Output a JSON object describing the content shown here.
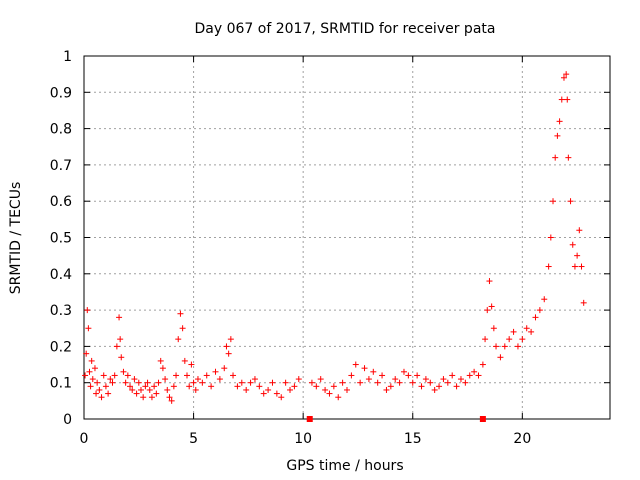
{
  "chart_data": {
    "type": "scatter",
    "title": "Day 067 of 2017, SRMTID for receiver pata",
    "xlabel": "GPS time / hours",
    "ylabel": "SRMTID / TECUs",
    "xlim": [
      0,
      24
    ],
    "ylim": [
      0,
      1
    ],
    "xticks": [
      0,
      5,
      10,
      15,
      20
    ],
    "xtick_labels": [
      "0",
      "5",
      "10",
      "15",
      "20"
    ],
    "yticks": [
      0,
      0.1,
      0.2,
      0.3,
      0.4,
      0.5,
      0.6,
      0.7,
      0.8,
      0.9,
      1
    ],
    "ytick_labels": [
      "0",
      "0.1",
      "0.2",
      "0.3",
      "0.4",
      "0.5",
      "0.6",
      "0.7",
      "0.8",
      "0.9",
      "1"
    ],
    "grid": true,
    "marker": "+",
    "series_color": "#ff0000",
    "series": [
      {
        "name": "SRMTID",
        "points": [
          [
            0.05,
            0.12
          ],
          [
            0.1,
            0.18
          ],
          [
            0.15,
            0.3
          ],
          [
            0.2,
            0.25
          ],
          [
            0.25,
            0.13
          ],
          [
            0.3,
            0.09
          ],
          [
            0.35,
            0.16
          ],
          [
            0.4,
            0.11
          ],
          [
            0.5,
            0.14
          ],
          [
            0.55,
            0.07
          ],
          [
            0.6,
            0.1
          ],
          [
            0.7,
            0.08
          ],
          [
            0.8,
            0.06
          ],
          [
            0.9,
            0.12
          ],
          [
            1.0,
            0.09
          ],
          [
            1.1,
            0.07
          ],
          [
            1.2,
            0.11
          ],
          [
            1.3,
            0.1
          ],
          [
            1.4,
            0.12
          ],
          [
            1.5,
            0.2
          ],
          [
            1.6,
            0.28
          ],
          [
            1.65,
            0.22
          ],
          [
            1.7,
            0.17
          ],
          [
            1.8,
            0.13
          ],
          [
            1.9,
            0.1
          ],
          [
            2.0,
            0.12
          ],
          [
            2.1,
            0.09
          ],
          [
            2.2,
            0.08
          ],
          [
            2.3,
            0.11
          ],
          [
            2.4,
            0.07
          ],
          [
            2.5,
            0.1
          ],
          [
            2.6,
            0.08
          ],
          [
            2.7,
            0.06
          ],
          [
            2.8,
            0.09
          ],
          [
            2.9,
            0.1
          ],
          [
            3.0,
            0.08
          ],
          [
            3.1,
            0.06
          ],
          [
            3.2,
            0.09
          ],
          [
            3.3,
            0.07
          ],
          [
            3.4,
            0.1
          ],
          [
            3.5,
            0.16
          ],
          [
            3.6,
            0.14
          ],
          [
            3.7,
            0.11
          ],
          [
            3.8,
            0.08
          ],
          [
            3.9,
            0.06
          ],
          [
            4.0,
            0.05
          ],
          [
            4.1,
            0.09
          ],
          [
            4.2,
            0.12
          ],
          [
            4.3,
            0.22
          ],
          [
            4.4,
            0.29
          ],
          [
            4.5,
            0.25
          ],
          [
            4.6,
            0.16
          ],
          [
            4.7,
            0.12
          ],
          [
            4.8,
            0.09
          ],
          [
            4.9,
            0.15
          ],
          [
            5.0,
            0.1
          ],
          [
            5.1,
            0.08
          ],
          [
            5.2,
            0.11
          ],
          [
            5.4,
            0.1
          ],
          [
            5.6,
            0.12
          ],
          [
            5.8,
            0.09
          ],
          [
            6.0,
            0.13
          ],
          [
            6.2,
            0.11
          ],
          [
            6.4,
            0.14
          ],
          [
            6.5,
            0.2
          ],
          [
            6.6,
            0.18
          ],
          [
            6.7,
            0.22
          ],
          [
            6.8,
            0.12
          ],
          [
            7.0,
            0.09
          ],
          [
            7.2,
            0.1
          ],
          [
            7.4,
            0.08
          ],
          [
            7.6,
            0.1
          ],
          [
            7.8,
            0.11
          ],
          [
            8.0,
            0.09
          ],
          [
            8.2,
            0.07
          ],
          [
            8.4,
            0.08
          ],
          [
            8.6,
            0.1
          ],
          [
            8.8,
            0.07
          ],
          [
            9.0,
            0.06
          ],
          [
            9.2,
            0.1
          ],
          [
            9.4,
            0.08
          ],
          [
            9.6,
            0.09
          ],
          [
            9.8,
            0.11
          ],
          [
            10.4,
            0.1
          ],
          [
            10.6,
            0.09
          ],
          [
            10.8,
            0.11
          ],
          [
            11.0,
            0.08
          ],
          [
            11.2,
            0.07
          ],
          [
            11.4,
            0.09
          ],
          [
            11.6,
            0.06
          ],
          [
            11.8,
            0.1
          ],
          [
            12.0,
            0.08
          ],
          [
            12.2,
            0.12
          ],
          [
            12.4,
            0.15
          ],
          [
            12.6,
            0.1
          ],
          [
            12.8,
            0.14
          ],
          [
            13.0,
            0.11
          ],
          [
            13.2,
            0.13
          ],
          [
            13.4,
            0.1
          ],
          [
            13.6,
            0.12
          ],
          [
            13.8,
            0.08
          ],
          [
            14.0,
            0.09
          ],
          [
            14.2,
            0.11
          ],
          [
            14.4,
            0.1
          ],
          [
            14.6,
            0.13
          ],
          [
            14.8,
            0.12
          ],
          [
            15.0,
            0.1
          ],
          [
            15.2,
            0.12
          ],
          [
            15.4,
            0.09
          ],
          [
            15.6,
            0.11
          ],
          [
            15.8,
            0.1
          ],
          [
            16.0,
            0.08
          ],
          [
            16.2,
            0.09
          ],
          [
            16.4,
            0.11
          ],
          [
            16.6,
            0.1
          ],
          [
            16.8,
            0.12
          ],
          [
            17.0,
            0.09
          ],
          [
            17.2,
            0.11
          ],
          [
            17.4,
            0.1
          ],
          [
            17.6,
            0.12
          ],
          [
            17.8,
            0.13
          ],
          [
            18.0,
            0.12
          ],
          [
            18.2,
            0.15
          ],
          [
            18.3,
            0.22
          ],
          [
            18.4,
            0.3
          ],
          [
            18.5,
            0.38
          ],
          [
            18.6,
            0.31
          ],
          [
            18.7,
            0.25
          ],
          [
            18.8,
            0.2
          ],
          [
            19.0,
            0.17
          ],
          [
            19.2,
            0.2
          ],
          [
            19.4,
            0.22
          ],
          [
            19.6,
            0.24
          ],
          [
            19.8,
            0.2
          ],
          [
            20.0,
            0.22
          ],
          [
            20.2,
            0.25
          ],
          [
            20.4,
            0.24
          ],
          [
            20.6,
            0.28
          ],
          [
            20.8,
            0.3
          ],
          [
            21.0,
            0.33
          ],
          [
            21.2,
            0.42
          ],
          [
            21.3,
            0.5
          ],
          [
            21.4,
            0.6
          ],
          [
            21.5,
            0.72
          ],
          [
            21.6,
            0.78
          ],
          [
            21.7,
            0.82
          ],
          [
            21.8,
            0.88
          ],
          [
            21.9,
            0.94
          ],
          [
            22.0,
            0.95
          ],
          [
            22.05,
            0.88
          ],
          [
            22.1,
            0.72
          ],
          [
            22.2,
            0.6
          ],
          [
            22.3,
            0.48
          ],
          [
            22.4,
            0.42
          ],
          [
            22.5,
            0.45
          ],
          [
            22.6,
            0.52
          ],
          [
            22.7,
            0.42
          ],
          [
            22.8,
            0.32
          ]
        ]
      }
    ],
    "gap_markers": [
      10.3,
      18.2
    ]
  }
}
